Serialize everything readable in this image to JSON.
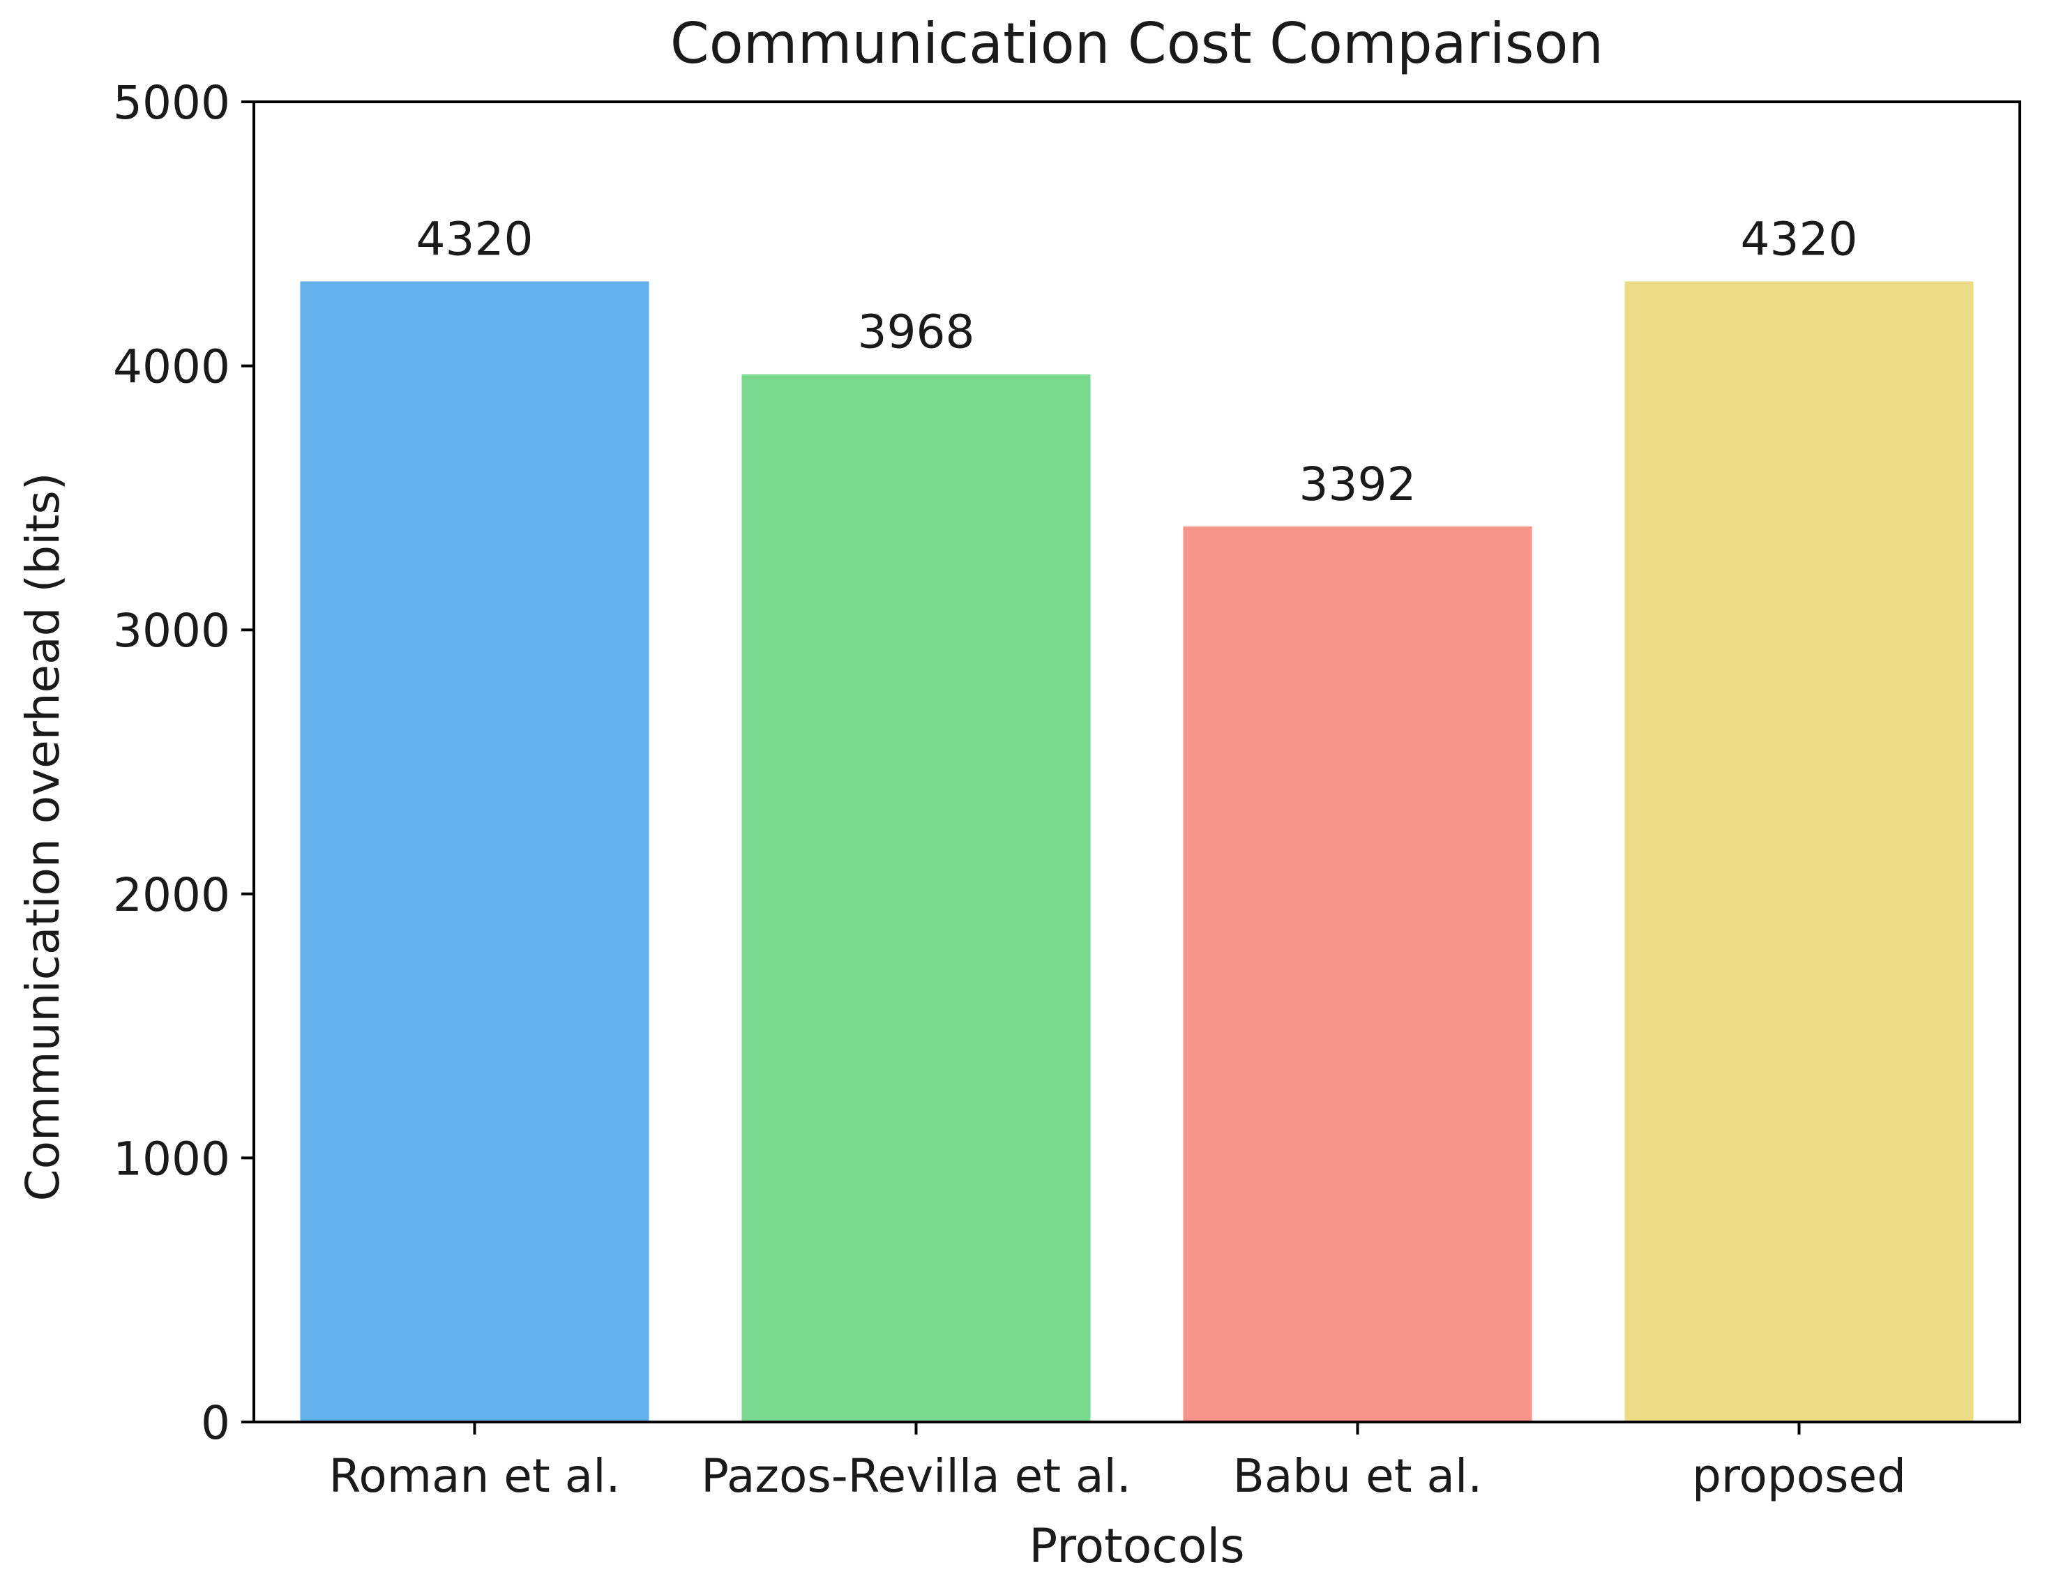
{
  "chart_data": {
    "type": "bar",
    "title": "Communication Cost Comparison",
    "xlabel": "Protocols",
    "ylabel": "Communication overhead (bits)",
    "categories": [
      "Roman et al.",
      "Pazos-Revilla et al.",
      "Babu et al.",
      "proposed"
    ],
    "values": [
      4320,
      3968,
      3392,
      4320
    ],
    "data_labels": [
      "4320",
      "3968",
      "3392",
      "4320"
    ],
    "colors": [
      "#63b0ea",
      "#7ad98f",
      "#f7958a",
      "#ecdc87"
    ],
    "ylim": [
      0,
      5000
    ],
    "yticks": [
      0,
      1000,
      2000,
      3000,
      4000,
      5000
    ],
    "ytick_labels": [
      "0",
      "1000",
      "2000",
      "3000",
      "4000",
      "5000"
    ],
    "grid": false,
    "legend": false
  }
}
